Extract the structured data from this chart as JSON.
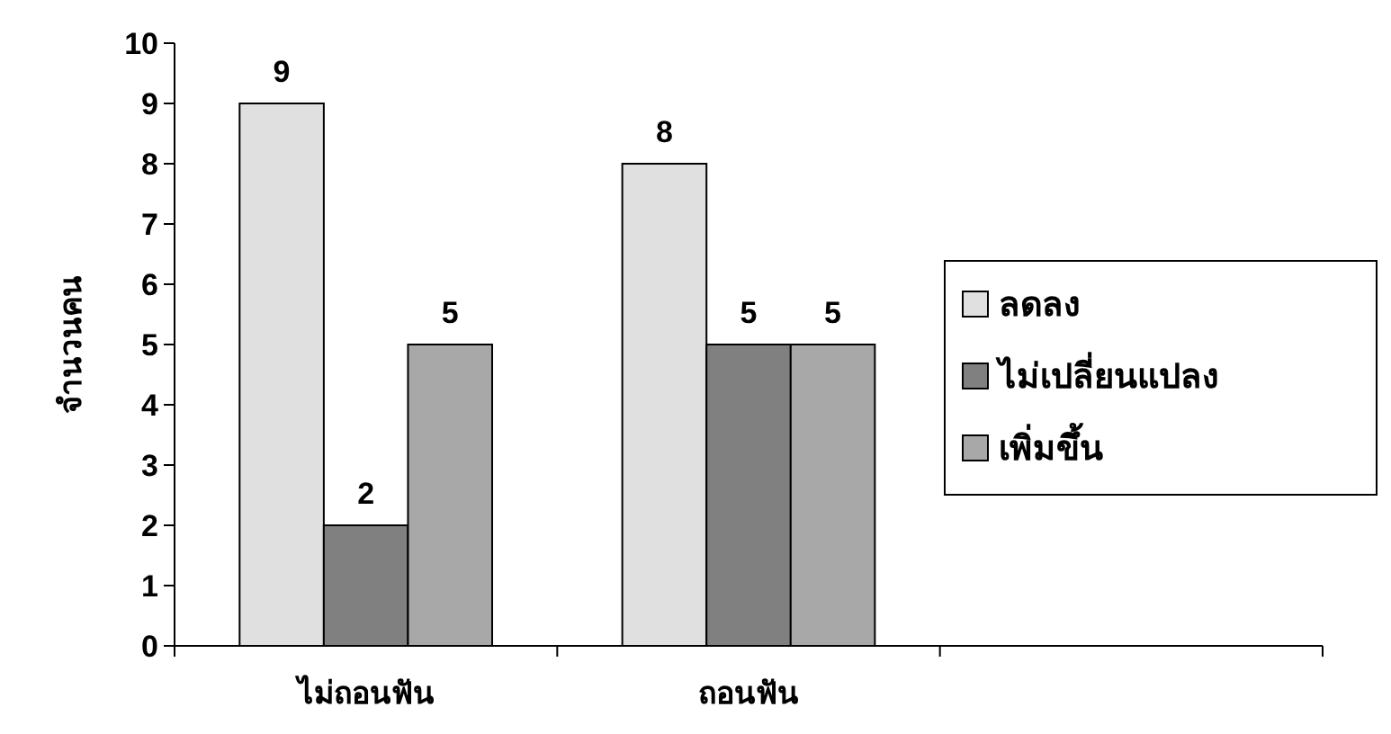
{
  "chart_data": {
    "type": "bar",
    "ylabel": "จำนวนคน",
    "categories": [
      "ไม่ถอนฟัน",
      "ถอนฟัน",
      null
    ],
    "series": [
      {
        "name": "ลดลง",
        "color": "#e0e0e0",
        "values": [
          9,
          8,
          null
        ]
      },
      {
        "name": "ไม่เปลี่ยนแปลง",
        "color": "#808080",
        "values": [
          2,
          5,
          null
        ]
      },
      {
        "name": "เพิ่มขึ้น",
        "color": "#a8a8a8",
        "values": [
          5,
          5,
          null
        ]
      }
    ],
    "ylim": [
      0,
      10
    ],
    "yticks": [
      0,
      1,
      2,
      3,
      4,
      5,
      6,
      7,
      8,
      9,
      10
    ],
    "data_labels": true,
    "legend": "right",
    "grid": false
  }
}
